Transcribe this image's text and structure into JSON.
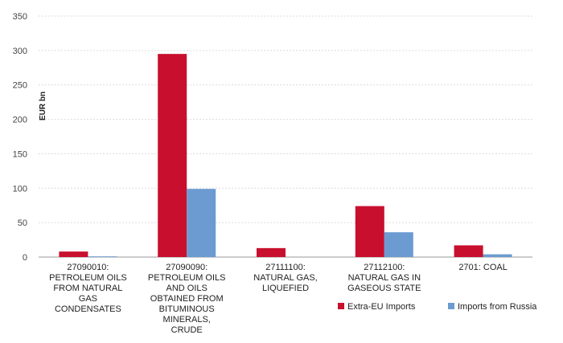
{
  "chart_data": {
    "type": "bar",
    "ylabel": "EUR bn",
    "ylim": [
      0,
      350
    ],
    "yticks": [
      0,
      50,
      100,
      150,
      200,
      250,
      300,
      350
    ],
    "grid": true,
    "legend_position": "bottom-right",
    "categories": [
      [
        "27090010:",
        "PETROLEUM OILS",
        "FROM NATURAL",
        "GAS",
        "CONDENSATES"
      ],
      [
        "27090090:",
        "PETROLEUM OILS",
        "AND OILS",
        "OBTAINED FROM",
        "BITUMINOUS",
        "MINERALS,",
        "CRUDE"
      ],
      [
        "27111100:",
        "NATURAL GAS,",
        "LIQUEFIED"
      ],
      [
        "27112100:",
        "NATURAL GAS IN",
        "GASEOUS STATE"
      ],
      [
        "2701: COAL"
      ]
    ],
    "series": [
      {
        "name": "Extra-EU Imports",
        "color": "#c8102e",
        "values": [
          8,
          295,
          13,
          74,
          17
        ]
      },
      {
        "name": "Imports from Russia",
        "color": "#6b9bd1",
        "values": [
          1,
          99,
          0,
          36,
          4
        ]
      }
    ]
  }
}
